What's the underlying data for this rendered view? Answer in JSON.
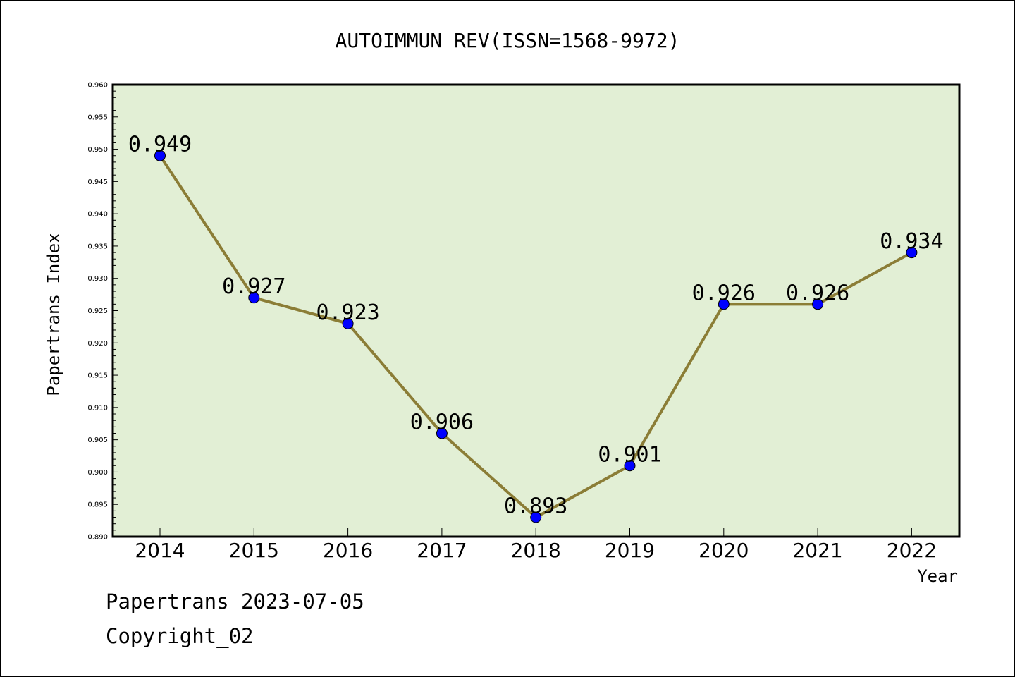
{
  "chart_data": {
    "type": "line",
    "title": "AUTOIMMUN REV(ISSN=1568-9972)",
    "xlabel": "Year",
    "ylabel": "Papertrans Index",
    "categories": [
      "2014",
      "2015",
      "2016",
      "2017",
      "2018",
      "2019",
      "2020",
      "2021",
      "2022"
    ],
    "series": [
      {
        "values": [
          0.949,
          0.927,
          0.923,
          0.906,
          0.893,
          0.901,
          0.926,
          0.926,
          0.934
        ],
        "labels": [
          "0.949",
          "0.927",
          "0.923",
          "0.906",
          "0.893",
          "0.901",
          "0.926",
          "0.926",
          "0.934"
        ]
      }
    ],
    "ylim": [
      0.89,
      0.96
    ],
    "yticks": [
      "0.890",
      "0.895",
      "0.900",
      "0.905",
      "0.910",
      "0.915",
      "0.920",
      "0.925",
      "0.930",
      "0.935",
      "0.940",
      "0.945",
      "0.950",
      "0.955",
      "0.960"
    ],
    "grid": false,
    "colors": {
      "plot_background": "#e2efd5",
      "line": "#8b7d36",
      "marker": "#0000ff"
    }
  },
  "footer": {
    "line1": "Papertrans 2023-07-05",
    "line2": "Copyright_02"
  }
}
